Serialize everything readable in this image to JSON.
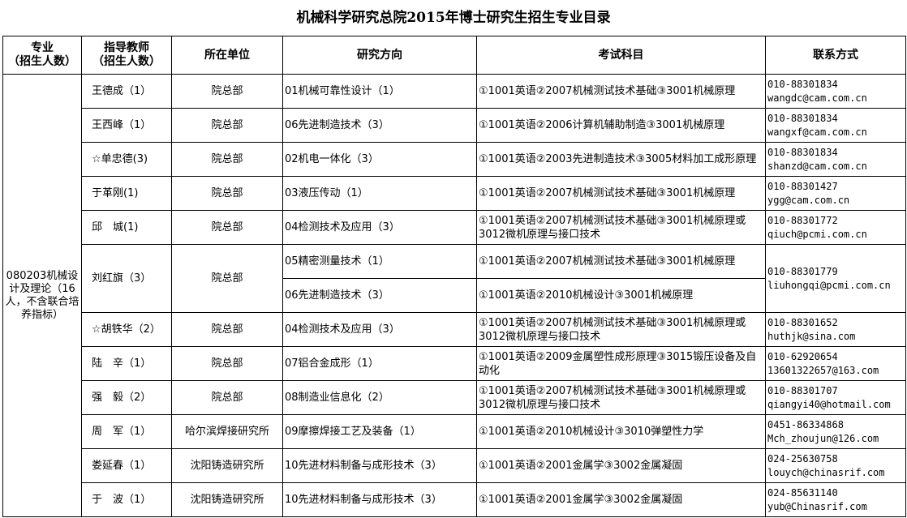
{
  "title": "机械科学研究总院2015年博士研究生招生专业目录",
  "headers": [
    "专业\n（招生人数）",
    "指导教师\n（招生人数）",
    "所在单位",
    "研究方向",
    "考试科目",
    "联系方式"
  ],
  "major": "080203机械设计及理论（16人，不含联合培养指标）",
  "rows": [
    {
      "tutor": "王德成（1）",
      "unit": "院总部",
      "directions": [
        "01机械可靠性设计（1）"
      ],
      "exams": [
        "①1001英语②2007机械测试技术基础③3001机械原理"
      ],
      "phone": "010-88301834",
      "email": "wangdc@cam.com.cn"
    },
    {
      "tutor": "王西峰（1）",
      "unit": "院总部",
      "directions": [
        "06先进制造技术（3）"
      ],
      "exams": [
        "①1001英语②2006计算机辅助制造③3001机械原理"
      ],
      "phone": "010-88301834",
      "email": "wangxf@cam.com.cn"
    },
    {
      "tutor": "☆单忠德(3)",
      "unit": "院总部",
      "directions": [
        "02机电一体化（3）"
      ],
      "exams": [
        "①1001英语②2003先进制造技术③3005材料加工成形原理"
      ],
      "phone": "010-88301834",
      "email": "shanzd@cam.com.cn"
    },
    {
      "tutor": "于革刚(1)",
      "unit": "院总部",
      "directions": [
        "03液压传动（1）"
      ],
      "exams": [
        "①1001英语②2007机械测试技术基础③3001机械原理"
      ],
      "phone": "010-88301427",
      "email": "ygg@cam.com.cn"
    },
    {
      "tutor": "邱　城(1)",
      "unit": "院总部",
      "directions": [
        "04检测技术及应用（3）"
      ],
      "exams": [
        "①1001英语②2007机械测试技术基础③3001机械原理或3012微机原理与接口技术"
      ],
      "phone": "010-88301772",
      "email": "qiuch@pcmi.com.cn"
    },
    {
      "tutor": "刘红旗（3）",
      "unit": "院总部",
      "directions": [
        "05精密测量技术（1）",
        "06先进制造技术（3）"
      ],
      "exams": [
        "①1001英语②2007机械测试技术基础③3001机械原理",
        "①1001英语②2010机械设计③3001机械原理"
      ],
      "phone": "010-88301779",
      "email": "liuhongqi@pcmi.com.cn"
    },
    {
      "tutor": "☆胡铁华（2）",
      "unit": "院总部",
      "directions": [
        "04检测技术及应用（3）"
      ],
      "exams": [
        "①1001英语②2007机械测试技术基础③3001机械原理或3012微机原理与接口技术"
      ],
      "phone": "010-88301652",
      "email": "huthjk@sina.com"
    },
    {
      "tutor": "陆　辛（1）",
      "unit": "院总部",
      "directions": [
        "07铝合金成形（1）"
      ],
      "exams": [
        "①1001英语②2009金属塑性成形原理③3015锻压设备及自动化"
      ],
      "phone": "010-62920654",
      "email": "13601322657@163.com"
    },
    {
      "tutor": "强　毅（2）",
      "unit": "院总部",
      "directions": [
        "08制造业信息化（2）"
      ],
      "exams": [
        "①1001英语②2007机械测试技术基础③3001机械原理或3012微机原理与接口技术"
      ],
      "phone": "010-88301707",
      "email": "qiangyi40@hotmail.com"
    },
    {
      "tutor": "周　军（1）",
      "unit": "哈尔滨焊接研究所",
      "directions": [
        "09摩擦焊接工艺及装备（1）"
      ],
      "exams": [
        "①1001英语②2010机械设计③3010弹塑性力学"
      ],
      "phone": "0451-86334868",
      "email": "Mch_zhoujun@126.com"
    },
    {
      "tutor": "娄延春（1）",
      "unit": "沈阳铸造研究所",
      "directions": [
        "10先进材料制备与成形技术（3）"
      ],
      "exams": [
        "①1001英语②2001金属学③3002金属凝固"
      ],
      "phone": "024-25630758",
      "email": "louych@chinasrif.com"
    },
    {
      "tutor": "于　波（1）",
      "unit": "沈阳铸造研究所",
      "directions": [
        "10先进材料制备与成形技术（3）"
      ],
      "exams": [
        "①1001英语②2001金属学③3002金属凝固"
      ],
      "phone": "024-85631140",
      "email": "yub@Chinasrif.com"
    }
  ]
}
